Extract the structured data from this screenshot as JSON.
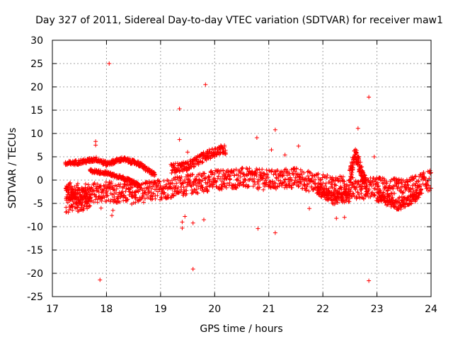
{
  "chart_data": {
    "type": "scatter",
    "title": "Day 327 of 2011, Sidereal Day-to-day VTEC variation (SDTVAR) for receiver maw1",
    "xlabel": "GPS time / hours",
    "ylabel": "SDTVAR / TECUs",
    "xlim": [
      17,
      24
    ],
    "ylim": [
      -25,
      30
    ],
    "xticks": [
      17,
      18,
      19,
      20,
      21,
      22,
      23,
      24
    ],
    "yticks": [
      -25,
      -20,
      -15,
      -10,
      -5,
      0,
      5,
      10,
      15,
      20,
      25,
      30
    ],
    "grid": true,
    "marker": "+",
    "color": "#ff0000",
    "series": [
      {
        "name": "SDTVAR",
        "bands": [
          {
            "x_start": 17.25,
            "x_end": 24.0,
            "step": 0.02,
            "center": [
              [
                17.25,
                -2.5
              ],
              [
                17.5,
                -3.0
              ],
              [
                18.0,
                -2.5
              ],
              [
                18.5,
                -3.0
              ],
              [
                19.0,
                -2.0
              ],
              [
                19.5,
                -1.0
              ],
              [
                20.0,
                0.0
              ],
              [
                20.5,
                0.5
              ],
              [
                21.0,
                0.0
              ],
              [
                21.5,
                0.5
              ],
              [
                22.0,
                -1.0
              ],
              [
                22.5,
                -1.5
              ],
              [
                22.7,
                -2.0
              ],
              [
                23.0,
                -1.5
              ],
              [
                23.5,
                -2.0
              ],
              [
                24.0,
                0.0
              ]
            ],
            "spread": 2.2
          },
          {
            "x_start": 17.25,
            "x_end": 17.7,
            "step": 0.015,
            "center": [
              [
                17.25,
                -4.5
              ],
              [
                17.7,
                -4.0
              ]
            ],
            "spread": 2.5
          },
          {
            "x_start": 17.25,
            "x_end": 18.9,
            "step": 0.02,
            "center": [
              [
                17.25,
                3.5
              ],
              [
                17.6,
                4.0
              ],
              [
                17.8,
                4.5
              ],
              [
                18.0,
                3.5
              ],
              [
                18.3,
                4.5
              ],
              [
                18.6,
                3.5
              ],
              [
                18.9,
                1.0
              ]
            ],
            "spread": 0.5
          },
          {
            "x_start": 17.7,
            "x_end": 18.6,
            "step": 0.02,
            "center": [
              [
                17.7,
                2.0
              ],
              [
                18.0,
                1.5
              ],
              [
                18.3,
                0.5
              ],
              [
                18.6,
                -1.0
              ]
            ],
            "spread": 0.4
          },
          {
            "x_start": 19.2,
            "x_end": 20.2,
            "step": 0.02,
            "center": [
              [
                19.2,
                2.5
              ],
              [
                19.5,
                3.0
              ],
              [
                19.8,
                5.0
              ],
              [
                20.1,
                6.5
              ]
            ],
            "spread": 1.0
          },
          {
            "x_start": 21.9,
            "x_end": 22.5,
            "step": 0.02,
            "center": [
              [
                21.9,
                -2.0
              ],
              [
                22.2,
                -4.0
              ],
              [
                22.5,
                -3.5
              ]
            ],
            "spread": 1.2
          },
          {
            "x_start": 22.5,
            "x_end": 22.8,
            "step": 0.01,
            "center": [
              [
                22.5,
                1.0
              ],
              [
                22.6,
                6.0
              ],
              [
                22.7,
                2.0
              ],
              [
                22.8,
                -1.0
              ]
            ],
            "spread": 1.5
          },
          {
            "x_start": 23.0,
            "x_end": 23.8,
            "step": 0.02,
            "center": [
              [
                23.0,
                -3.5
              ],
              [
                23.4,
                -5.5
              ],
              [
                23.8,
                -3.0
              ]
            ],
            "spread": 1.0
          }
        ],
        "points": [
          [
            18.05,
            25.0
          ],
          [
            19.83,
            20.5
          ],
          [
            22.85,
            17.8
          ],
          [
            19.35,
            15.3
          ],
          [
            21.12,
            10.8
          ],
          [
            22.65,
            11.1
          ],
          [
            20.78,
            9.1
          ],
          [
            17.8,
            8.3
          ],
          [
            17.8,
            7.5
          ],
          [
            19.35,
            8.7
          ],
          [
            19.5,
            6.0
          ],
          [
            21.05,
            6.5
          ],
          [
            22.95,
            5.0
          ],
          [
            21.55,
            7.3
          ],
          [
            19.4,
            -9.0
          ],
          [
            19.4,
            -10.3
          ],
          [
            19.6,
            -9.2
          ],
          [
            19.8,
            -8.5
          ],
          [
            20.8,
            -10.4
          ],
          [
            21.12,
            -11.3
          ],
          [
            19.6,
            -19.1
          ],
          [
            17.88,
            -21.4
          ],
          [
            22.85,
            -21.6
          ],
          [
            18.1,
            -7.6
          ],
          [
            22.25,
            -8.2
          ],
          [
            22.4,
            -8.0
          ],
          [
            21.75,
            -6.1
          ],
          [
            18.12,
            -6.5
          ],
          [
            17.9,
            -6.0
          ],
          [
            19.45,
            -7.8
          ],
          [
            18.95,
            -2.5
          ],
          [
            20.9,
            1.5
          ],
          [
            21.3,
            5.4
          ]
        ]
      }
    ]
  }
}
